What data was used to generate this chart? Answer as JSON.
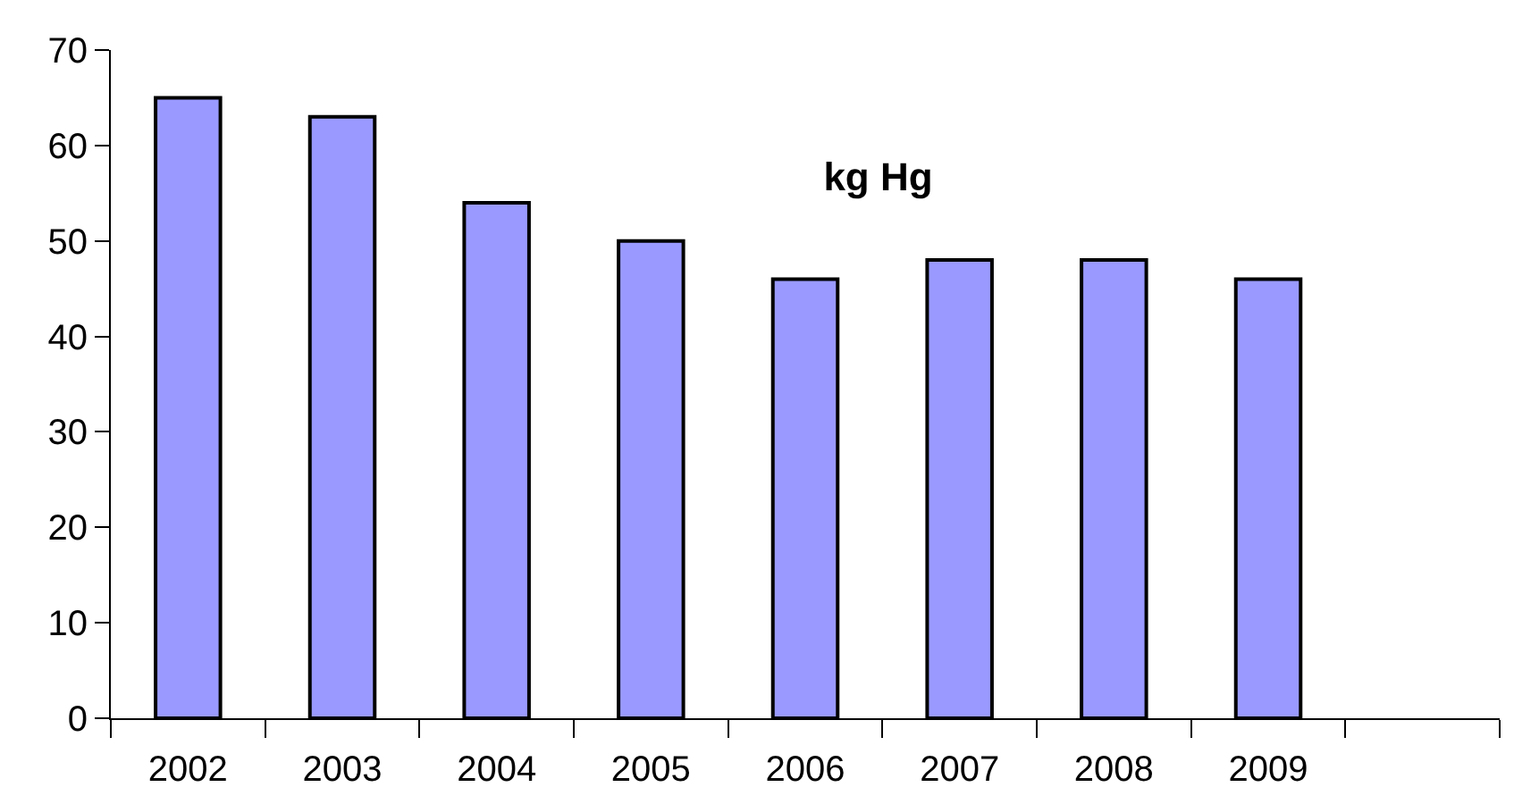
{
  "chart_data": {
    "type": "bar",
    "title": "kg Hg",
    "categories": [
      "2002",
      "2003",
      "2004",
      "2005",
      "2006",
      "2007",
      "2008",
      "2009",
      null
    ],
    "values": [
      65,
      63,
      54,
      50,
      46,
      48,
      48,
      46,
      null
    ],
    "color": "#9999ff",
    "ylim": [
      0,
      70
    ],
    "yticks": [
      0,
      10,
      20,
      30,
      40,
      50,
      60,
      70
    ]
  }
}
